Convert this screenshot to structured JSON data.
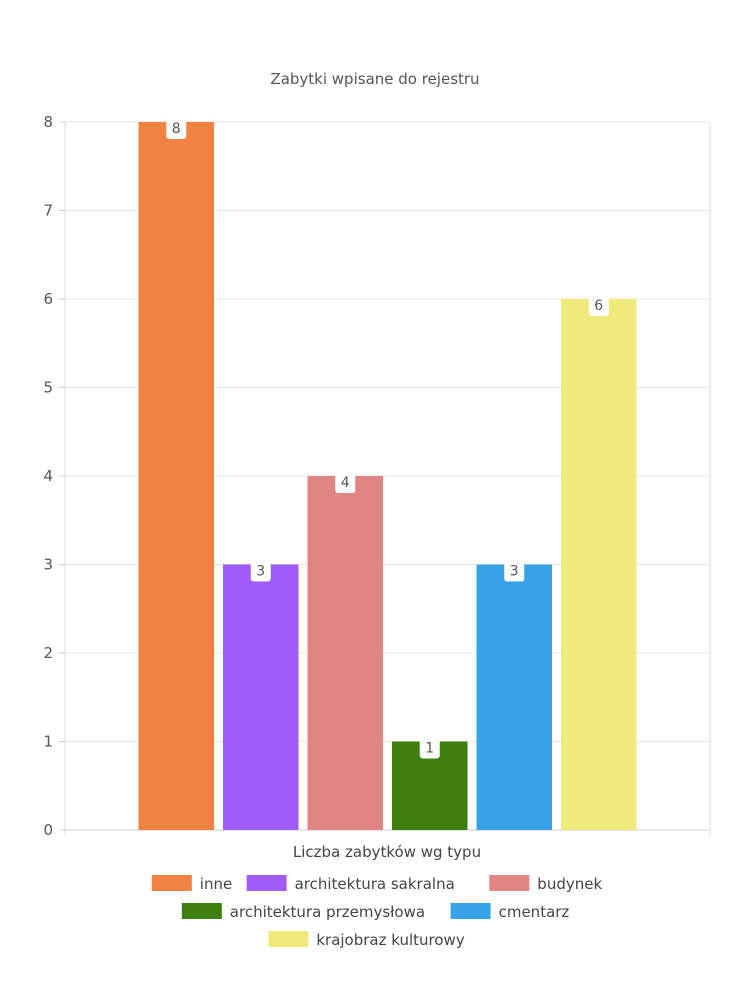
{
  "chart_data": {
    "type": "bar",
    "title": "Zabytki wpisane do rejestru",
    "xlabel": "Liczba zabytków wg typu",
    "ylabel": "",
    "ylim": [
      0,
      8
    ],
    "yticks": [
      0,
      1,
      2,
      3,
      4,
      5,
      6,
      7,
      8
    ],
    "grid": true,
    "legend_position": "bottom",
    "series": [
      {
        "name": "inne",
        "value": 8,
        "color": "#F28241"
      },
      {
        "name": "architektura sakralna",
        "value": 3,
        "color": "#A05CF8"
      },
      {
        "name": "budynek",
        "value": 4,
        "color": "#E08484"
      },
      {
        "name": "architektura przemysłowa",
        "value": 1,
        "color": "#3F7F10"
      },
      {
        "name": "cmentarz",
        "value": 3,
        "color": "#38A2E8"
      },
      {
        "name": "krajobraz kulturowy",
        "value": 6,
        "color": "#F0E97C"
      }
    ]
  }
}
